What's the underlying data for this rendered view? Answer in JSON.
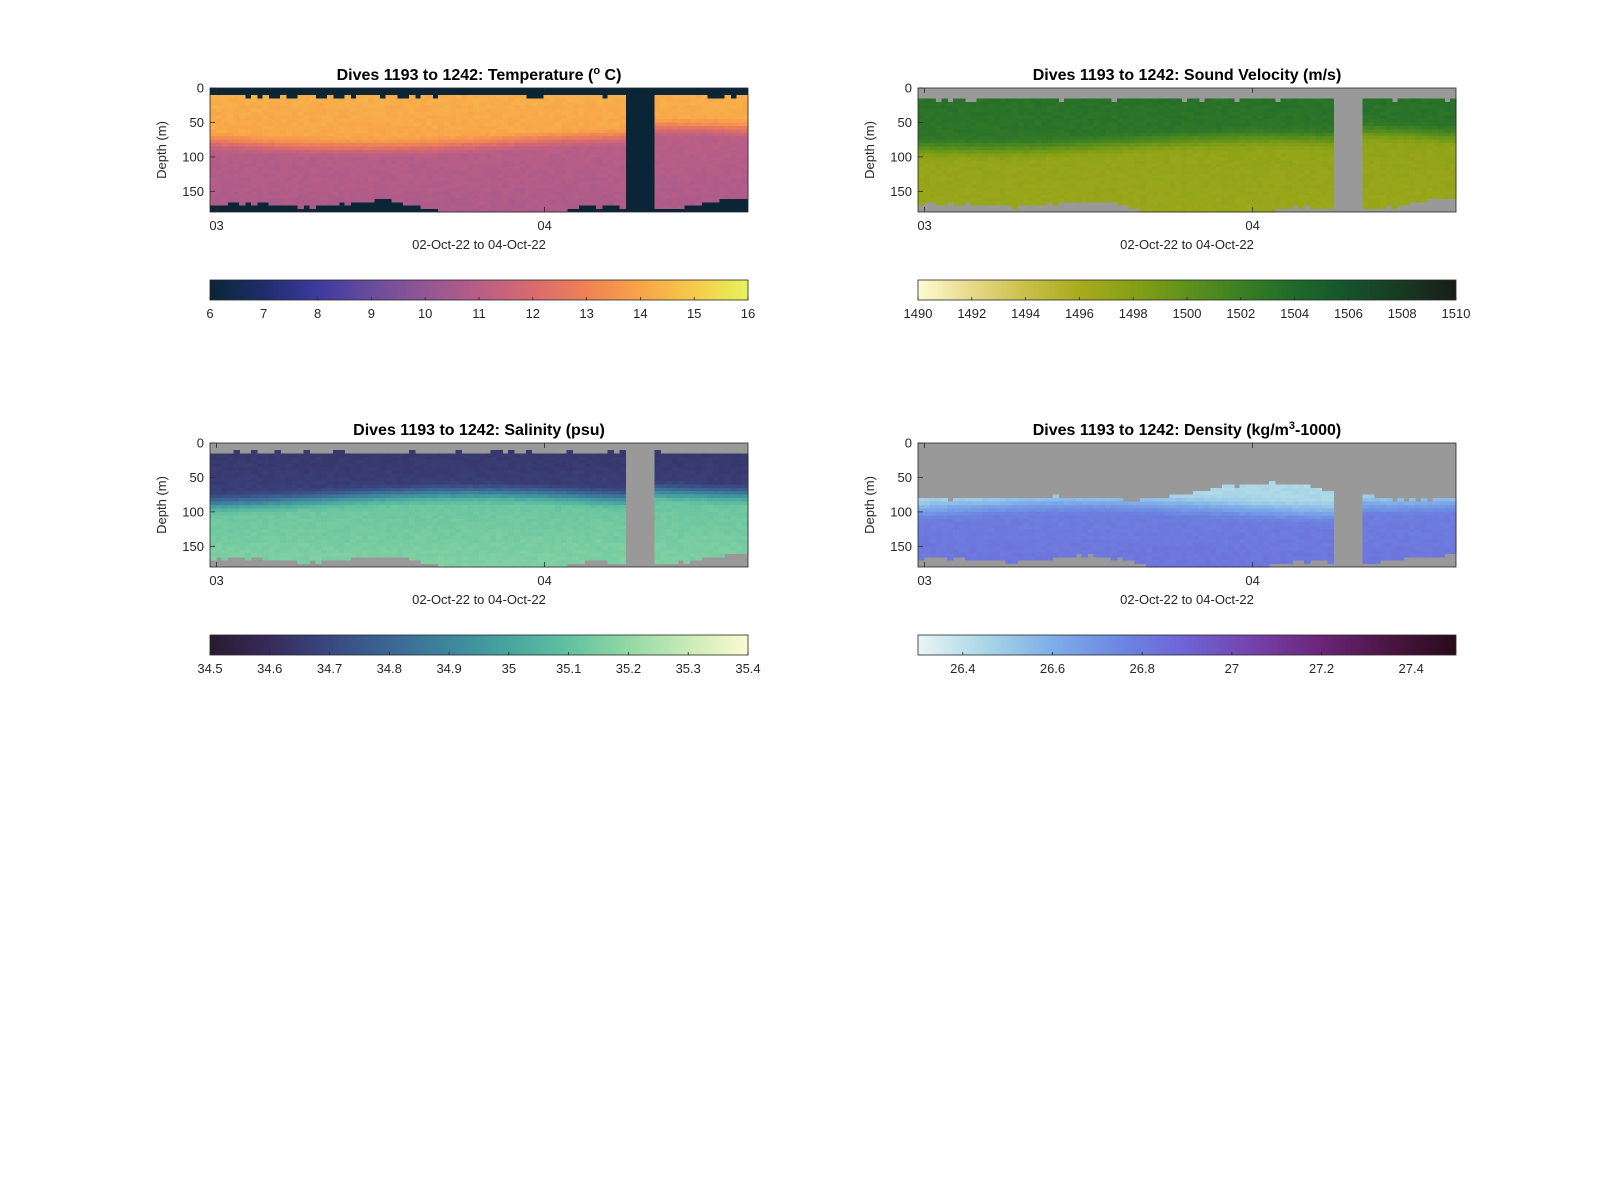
{
  "chart_data": [
    {
      "type": "heatmap",
      "title_main": "Dives 1193 to 1242: Temperature (",
      "title_sup": "o",
      "title_tail": " C)",
      "xlabel": "02-Oct-22 to 04-Oct-22",
      "ylabel": "Depth (m)",
      "xticks": [
        "03",
        "04"
      ],
      "xtick_pos": [
        0.0,
        1.0
      ],
      "xlim": [
        -0.02,
        1.62
      ],
      "yticks": [
        0,
        50,
        100,
        150
      ],
      "ylim": [
        0,
        180
      ],
      "colorbar": {
        "ticks": [
          "6",
          "7",
          "8",
          "9",
          "10",
          "11",
          "12",
          "13",
          "14",
          "15",
          "16"
        ],
        "range": [
          6,
          16
        ],
        "colors": [
          "#0a2536",
          "#1f2d6b",
          "#3d3a9e",
          "#6a4c9c",
          "#925693",
          "#b85e86",
          "#d86a6f",
          "#ef8255",
          "#f8a44a",
          "#f7ca4b",
          "#e6f35b"
        ]
      },
      "surface_value": 14.3,
      "deep_value": 10.7,
      "nodata_color": "#0a2536",
      "surface_depth": 10,
      "thermocline": [
        62,
        95
      ],
      "gap": [
        1.24,
        1.34
      ]
    },
    {
      "type": "heatmap",
      "title_main": "Dives 1193 to 1242: Sound Velocity (m/s)",
      "title_sup": "",
      "title_tail": "",
      "xlabel": "02-Oct-22 to 04-Oct-22",
      "ylabel": "Depth (m)",
      "xticks": [
        "03",
        "04"
      ],
      "xtick_pos": [
        0.0,
        1.0
      ],
      "xlim": [
        -0.02,
        1.62
      ],
      "yticks": [
        0,
        50,
        100,
        150
      ],
      "ylim": [
        0,
        180
      ],
      "colorbar": {
        "ticks": [
          "1490",
          "1492",
          "1494",
          "1496",
          "1498",
          "1500",
          "1502",
          "1504",
          "1506",
          "1508",
          "1510"
        ],
        "range": [
          1490,
          1510
        ],
        "colors": [
          "#fdfbd3",
          "#e7d98a",
          "#c9c04a",
          "#a8ab1d",
          "#86a016",
          "#5f911b",
          "#3b7f24",
          "#1f6a2b",
          "#15532b",
          "#173a22",
          "#171e17"
        ]
      },
      "surface_value": 1503.4,
      "deep_value": 1496.8,
      "nodata_color": "#999999",
      "surface_depth": 14,
      "thermocline": [
        62,
        100
      ],
      "gap": [
        1.24,
        1.34
      ]
    },
    {
      "type": "heatmap",
      "title_main": "Dives 1193 to 1242: Salinity (psu)",
      "title_sup": "",
      "title_tail": "",
      "xlabel": "02-Oct-22 to 04-Oct-22",
      "ylabel": "Depth (m)",
      "xticks": [
        "03",
        "04"
      ],
      "xtick_pos": [
        0.0,
        1.0
      ],
      "xlim": [
        -0.02,
        1.62
      ],
      "yticks": [
        0,
        50,
        100,
        150
      ],
      "ylim": [
        0,
        180
      ],
      "colorbar": {
        "ticks": [
          "34.5",
          "34.6",
          "34.7",
          "34.8",
          "34.9",
          "35",
          "35.1",
          "35.2",
          "35.3",
          "35.4"
        ],
        "range": [
          34.5,
          35.4
        ],
        "colors": [
          "#291b2e",
          "#362b5c",
          "#3a4781",
          "#3b6694",
          "#3e869c",
          "#47a5a0",
          "#62c19f",
          "#93d9a4",
          "#c9ebb6",
          "#fdfbd1"
        ]
      },
      "surface_value": 34.64,
      "deep_value": 35.16,
      "nodata_color": "#999999",
      "surface_depth": 12,
      "thermocline": [
        62,
        100
      ],
      "gap": [
        1.24,
        1.34
      ]
    },
    {
      "type": "heatmap",
      "title_main": "Dives 1193 to 1242: Density (kg/m",
      "title_sup": "3",
      "title_tail": "-1000)",
      "xlabel": "02-Oct-22 to 04-Oct-22",
      "ylabel": "Depth (m)",
      "xticks": [
        "03",
        "04"
      ],
      "xtick_pos": [
        0.0,
        1.0
      ],
      "xlim": [
        -0.02,
        1.62
      ],
      "yticks": [
        0,
        50,
        100,
        150
      ],
      "ylim": [
        0,
        180
      ],
      "colorbar": {
        "ticks": [
          "26.4",
          "26.6",
          "26.8",
          "27",
          "27.2",
          "27.4"
        ],
        "tick_values": [
          26.4,
          26.6,
          26.8,
          27.0,
          27.2,
          27.4
        ],
        "range": [
          26.3,
          27.5
        ],
        "colors": [
          "#e9f5f6",
          "#a9d6e7",
          "#7eaee8",
          "#6c87e2",
          "#6f62d4",
          "#7541ab",
          "#6b2478",
          "#4a1542",
          "#2a0a1a"
        ]
      },
      "surface_value": 26.42,
      "deep_value": 26.82,
      "nodata_color": "#999999",
      "surface_depth": 72,
      "thermocline": [
        75,
        115
      ],
      "gap": [
        1.24,
        1.34
      ]
    }
  ]
}
